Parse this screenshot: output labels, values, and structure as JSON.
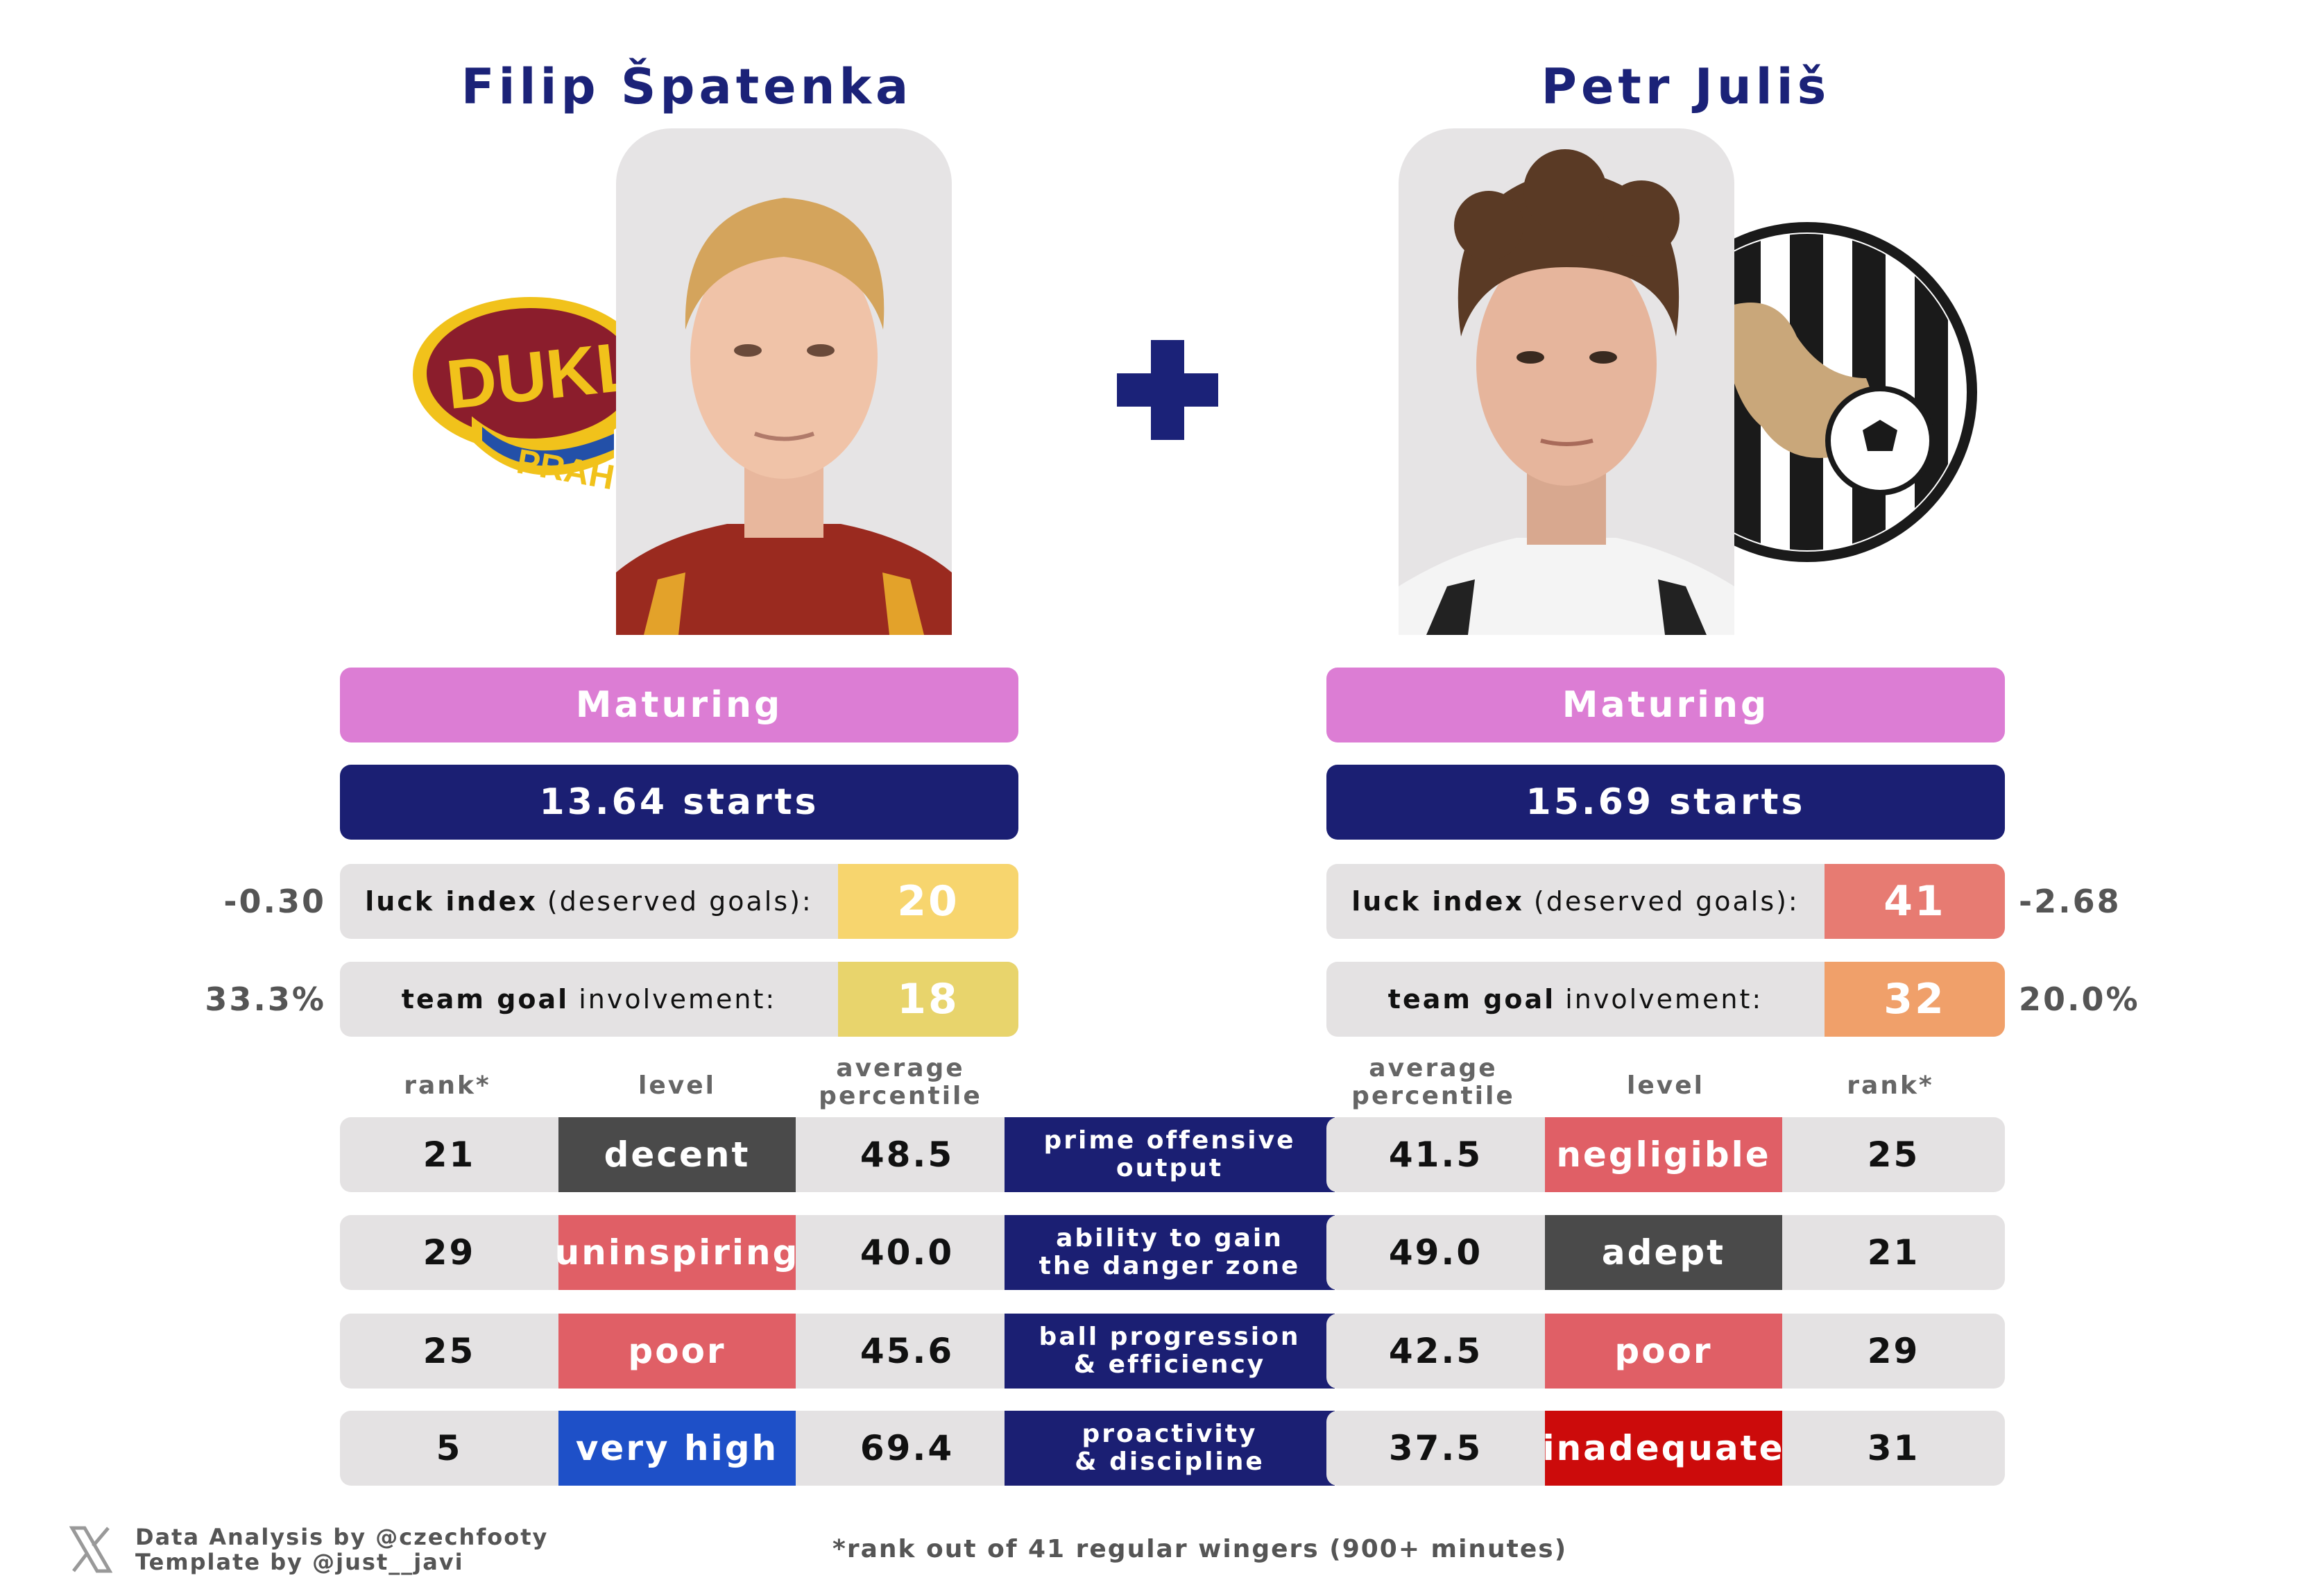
{
  "players": {
    "left": {
      "name": "Filip Špatenka",
      "badge": "Maturing",
      "starts": "13.64 starts",
      "luck_value": "20",
      "luck_side": "-0.30",
      "involvement_value": "18",
      "involvement_side": "33.3%",
      "club_logo": "dukla-praha-logo",
      "club_logo_text": [
        "DUKLA",
        "PRAHA"
      ]
    },
    "right": {
      "name": "Petr Juliš",
      "badge": "Maturing",
      "starts": "15.69 starts",
      "luck_value": "41",
      "luck_side": "-2.68",
      "involvement_value": "32",
      "involvement_side": "20.0%",
      "club_logo": "dynamo-ceske-budejovice-logo"
    }
  },
  "labels": {
    "luck_bold": "luck index",
    "luck_rest": "(deserved goals):",
    "involvement_bold": "team goal",
    "involvement_rest": "involvement:"
  },
  "headers": {
    "rank": "rank*",
    "level": "level",
    "avg_line1": "average",
    "avg_line2": "percentile"
  },
  "metrics": [
    {
      "cat1": "prime offensive",
      "cat2": "output",
      "left": {
        "rank": "21",
        "level": "decent",
        "avg": "48.5"
      },
      "right": {
        "rank": "25",
        "level": "negligible",
        "avg": "41.5"
      }
    },
    {
      "cat1": "ability to gain",
      "cat2": "the danger zone",
      "left": {
        "rank": "29",
        "level": "uninspiring",
        "avg": "40.0"
      },
      "right": {
        "rank": "21",
        "level": "adept",
        "avg": "49.0"
      }
    },
    {
      "cat1": "ball progression",
      "cat2": "& efficiency",
      "left": {
        "rank": "25",
        "level": "poor",
        "avg": "45.6"
      },
      "right": {
        "rank": "29",
        "level": "poor",
        "avg": "42.5"
      }
    },
    {
      "cat1": "proactivity",
      "cat2": "& discipline",
      "left": {
        "rank": "5",
        "level": "very high",
        "avg": "69.4"
      },
      "right": {
        "rank": "31",
        "level": "inadequate",
        "avg": "37.5"
      }
    }
  ],
  "colors": {
    "navy": "#1b1f73",
    "maturing": "#dc7dd4",
    "luck_left": "#f7d56e",
    "involvement_left": "#e8d46c",
    "luck_right": "#e77b72",
    "involvement_right": "#f0a06a",
    "decent": "#4a4a4a",
    "negligible": "#e05f66",
    "uninspiring": "#e05f66",
    "adept": "#4a4a4a",
    "poor": "#e05f66",
    "very_high": "#1e50c8",
    "inadequate": "#cc0b0b"
  },
  "footer": {
    "credit1": "Data Analysis by @czechfooty",
    "credit2": "Template by @just__javi",
    "note": "*rank out of 41 regular wingers (900+ minutes)"
  },
  "icons": {
    "plus": "plus-icon",
    "x_logo": "x-logo-icon"
  }
}
